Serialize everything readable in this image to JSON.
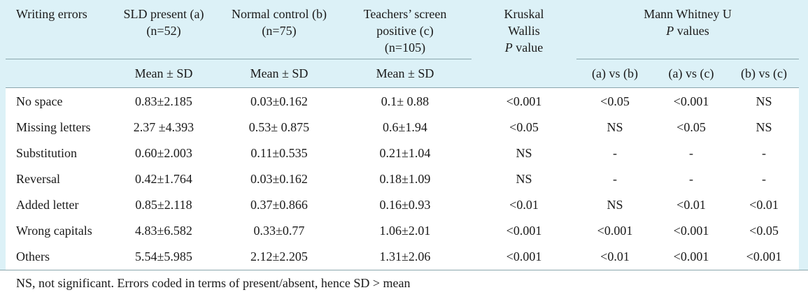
{
  "table": {
    "header": {
      "col_writing_errors": "Writing errors",
      "col_a_line1": "SLD present (a)",
      "col_a_line2": "(n=52)",
      "col_b_line1": "Normal control (b)",
      "col_b_line2": "(n=75)",
      "col_c_line1": "Teachers’ screen",
      "col_c_line2": "positive (c)",
      "col_c_line3": "(n=105)",
      "col_kw_line1": "Kruskal",
      "col_kw_line2": "Wallis",
      "col_kw_line3_italic": "P",
      "col_kw_line3_rest": " value",
      "col_mw_line1": "Mann Whitney U",
      "col_mw_line2_italic": "P",
      "col_mw_line2_rest": " values",
      "sub_mean_a": "Mean ± SD",
      "sub_mean_b": "Mean ± SD",
      "sub_mean_c": "Mean ± SD",
      "sub_ab": "(a) vs (b)",
      "sub_ac": "(a) vs (c)",
      "sub_bc": "(b) vs (c)"
    },
    "rows": [
      {
        "error": "No space",
        "a": "0.83±2.185",
        "b": "0.03±0.162",
        "c": "0.1± 0.88",
        "kw": "<0.001",
        "ab": "<0.05",
        "ac": "<0.001",
        "bc": "NS"
      },
      {
        "error": "Missing letters",
        "a": "2.37 ±4.393",
        "b": "0.53± 0.875",
        "c": "0.6±1.94",
        "kw": "<0.05",
        "ab": "NS",
        "ac": "<0.05",
        "bc": "NS"
      },
      {
        "error": "Substitution",
        "a": "0.60±2.003",
        "b": "0.11±0.535",
        "c": "0.21±1.04",
        "kw": "NS",
        "ab": "-",
        "ac": "-",
        "bc": "-"
      },
      {
        "error": "Reversal",
        "a": "0.42±1.764",
        "b": "0.03±0.162",
        "c": "0.18±1.09",
        "kw": "NS",
        "ab": "-",
        "ac": "-",
        "bc": "-"
      },
      {
        "error": "Added letter",
        "a": "0.85±2.118",
        "b": "0.37±0.866",
        "c": "0.16±0.93",
        "kw": "<0.01",
        "ab": "NS",
        "ac": "<0.01",
        "bc": "<0.01"
      },
      {
        "error": "Wrong capitals",
        "a": "4.83±6.582",
        "b": "0.33±0.77",
        "c": "1.06±2.01",
        "kw": "<0.001",
        "ab": "<0.001",
        "ac": "<0.001",
        "bc": "<0.05"
      },
      {
        "error": "Others",
        "a": "5.54±5.985",
        "b": "2.12±2.205",
        "c": "1.31±2.06",
        "kw": "<0.001",
        "ab": "<0.01",
        "ac": "<0.001",
        "bc": "<0.001"
      }
    ],
    "footnote": "NS, not significant. Errors coded in terms of present/absent, hence SD > mean"
  }
}
